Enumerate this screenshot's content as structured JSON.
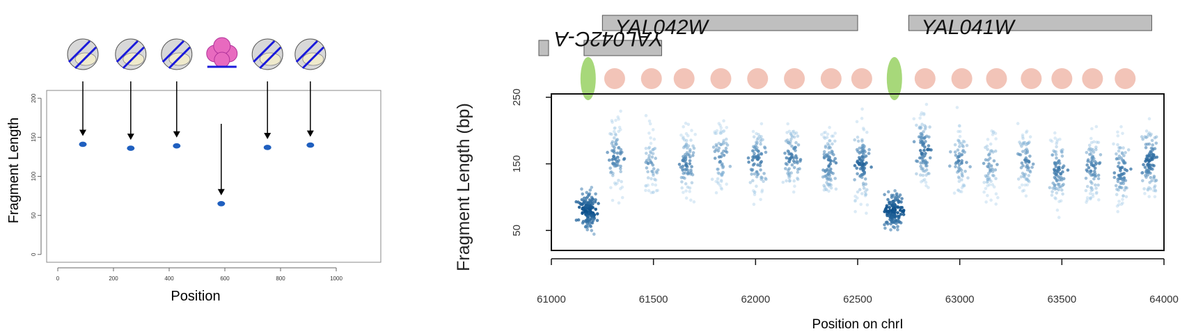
{
  "chart_data": [
    {
      "type": "scatter",
      "title": "",
      "xlabel": "Position",
      "ylabel": "Fragment Length",
      "xlim": [
        -40,
        1160
      ],
      "ylim": [
        -10,
        210
      ],
      "x_ticks": [
        "0",
        "200",
        "400",
        "600",
        "800",
        "1000"
      ],
      "y_ticks": [
        "0",
        "50",
        "100",
        "150",
        "200"
      ],
      "grid": false,
      "legend": "none",
      "points": [
        {
          "x": 90,
          "y": 141
        },
        {
          "x": 262,
          "y": 136
        },
        {
          "x": 427,
          "y": 139
        },
        {
          "x": 587,
          "y": 65
        },
        {
          "x": 753,
          "y": 137
        },
        {
          "x": 907,
          "y": 140
        }
      ],
      "annotations": {
        "icons": [
          "nucleosome-icon",
          "nucleosome-icon",
          "nucleosome-icon",
          "protein-complex-icon",
          "nucleosome-icon",
          "nucleosome-icon"
        ],
        "point_color": "#1f5fbf",
        "arrow_color": "#000000"
      }
    },
    {
      "type": "scatter",
      "title": "",
      "xlabel": "Position on chrI",
      "ylabel": "Fragment Length (bp)",
      "xlim": [
        61000,
        64000
      ],
      "ylim": [
        20,
        255
      ],
      "x_ticks": [
        "61000",
        "61500",
        "62000",
        "62500",
        "63000",
        "63500",
        "64000"
      ],
      "y_ticks": [
        "50",
        "150",
        "250"
      ],
      "grid": false,
      "legend": "none",
      "genes": [
        {
          "name": "YAL042W",
          "start": 61250,
          "end": 62500,
          "strand": "+"
        },
        {
          "name": "YAL041W",
          "start": 62750,
          "end": 63940,
          "strand": "+"
        },
        {
          "name": "YAL042C-A",
          "start": 61160,
          "end": 61540,
          "strand": "-"
        }
      ],
      "nucleosome_centers": [
        61310,
        61490,
        61650,
        61830,
        62010,
        62190,
        62370,
        62520,
        62830,
        63010,
        63180,
        63350,
        63500,
        63650,
        63810
      ],
      "nfr_centers": [
        61180,
        62680
      ],
      "clusters": [
        {
          "x": 61180,
          "y": 80,
          "density": 1.0
        },
        {
          "x": 61320,
          "y": 160,
          "density": 0.55
        },
        {
          "x": 61490,
          "y": 150,
          "density": 0.3
        },
        {
          "x": 61660,
          "y": 150,
          "density": 0.55
        },
        {
          "x": 61830,
          "y": 160,
          "density": 0.45
        },
        {
          "x": 62010,
          "y": 155,
          "density": 0.6
        },
        {
          "x": 62180,
          "y": 160,
          "density": 0.55
        },
        {
          "x": 62360,
          "y": 150,
          "density": 0.6
        },
        {
          "x": 62520,
          "y": 150,
          "density": 0.75
        },
        {
          "x": 62680,
          "y": 80,
          "density": 1.0
        },
        {
          "x": 62820,
          "y": 170,
          "density": 0.7
        },
        {
          "x": 63000,
          "y": 155,
          "density": 0.45
        },
        {
          "x": 63150,
          "y": 150,
          "density": 0.35
        },
        {
          "x": 63320,
          "y": 155,
          "density": 0.45
        },
        {
          "x": 63480,
          "y": 140,
          "density": 0.6
        },
        {
          "x": 63650,
          "y": 145,
          "density": 0.55
        },
        {
          "x": 63790,
          "y": 140,
          "density": 0.6
        },
        {
          "x": 63930,
          "y": 155,
          "density": 0.75
        }
      ],
      "colors": {
        "nucleosome": "#f2c4b8",
        "nfr": "#a7d87a",
        "gene_box": "#bfbfbf",
        "point_dark": "#0b4f8a",
        "point_light": "#9cc7e6"
      }
    }
  ]
}
